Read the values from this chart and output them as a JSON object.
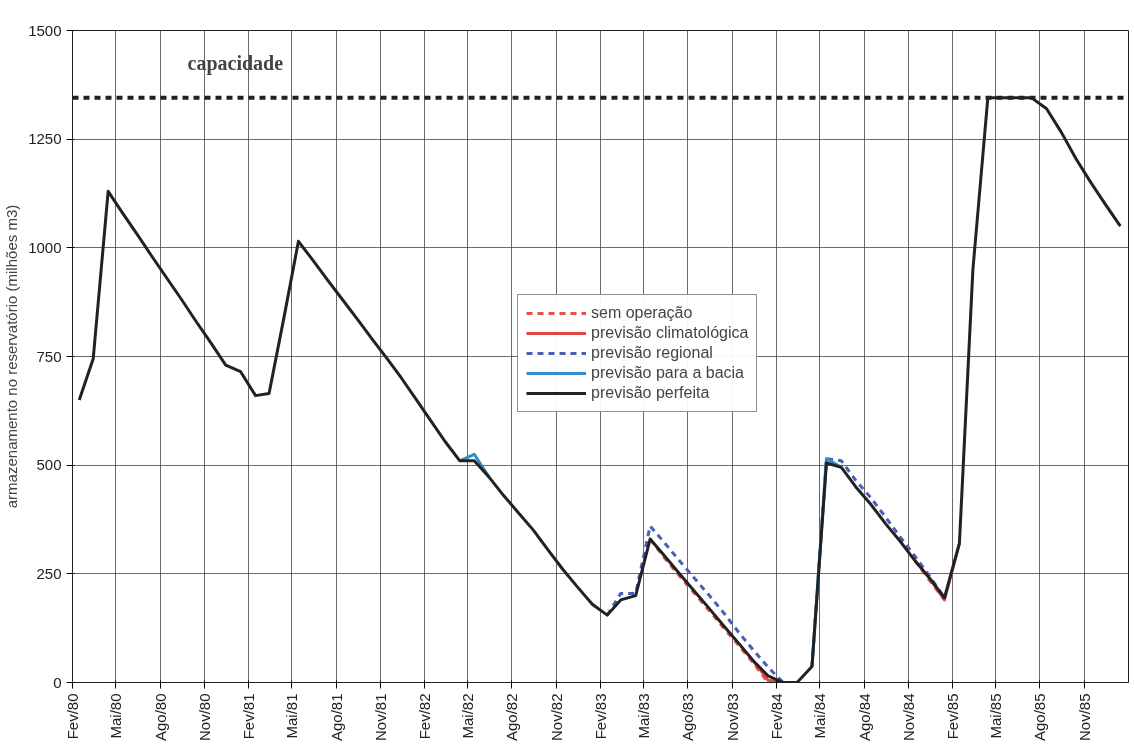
{
  "chart_data": {
    "type": "line",
    "ylabel": "armazenamento no reservatório (milhões m3)",
    "ylim": [
      0,
      1500
    ],
    "yticks": [
      0,
      250,
      500,
      750,
      1000,
      1250,
      1500
    ],
    "xlim": [
      "1980-02-01",
      "1986-02-01"
    ],
    "xticks": [
      {
        "value": "1980-02-01",
        "label": "Fev/80"
      },
      {
        "value": "1980-05-01",
        "label": "Mai/80"
      },
      {
        "value": "1980-08-01",
        "label": "Ago/80"
      },
      {
        "value": "1980-11-01",
        "label": "Nov/80"
      },
      {
        "value": "1981-02-01",
        "label": "Fev/81"
      },
      {
        "value": "1981-05-01",
        "label": "Mai/81"
      },
      {
        "value": "1981-08-01",
        "label": "Ago/81"
      },
      {
        "value": "1981-11-01",
        "label": "Nov/81"
      },
      {
        "value": "1982-02-01",
        "label": "Fev/82"
      },
      {
        "value": "1982-05-01",
        "label": "Mai/82"
      },
      {
        "value": "1982-08-01",
        "label": "Ago/82"
      },
      {
        "value": "1982-11-01",
        "label": "Nov/82"
      },
      {
        "value": "1983-02-01",
        "label": "Fev/83"
      },
      {
        "value": "1983-05-01",
        "label": "Mai/83"
      },
      {
        "value": "1983-08-01",
        "label": "Ago/83"
      },
      {
        "value": "1983-11-01",
        "label": "Nov/83"
      },
      {
        "value": "1984-02-01",
        "label": "Fev/84"
      },
      {
        "value": "1984-05-01",
        "label": "Mai/84"
      },
      {
        "value": "1984-08-01",
        "label": "Ago/84"
      },
      {
        "value": "1984-11-01",
        "label": "Nov/84"
      },
      {
        "value": "1985-02-01",
        "label": "Fev/85"
      },
      {
        "value": "1985-05-01",
        "label": "Mai/85"
      },
      {
        "value": "1985-08-01",
        "label": "Ago/85"
      },
      {
        "value": "1985-11-01",
        "label": "Nov/85"
      }
    ],
    "x": [
      "1980-02-15",
      "1980-03-15",
      "1980-04-15",
      "1980-05-15",
      "1980-06-15",
      "1980-07-15",
      "1980-08-15",
      "1980-09-15",
      "1980-10-15",
      "1980-11-15",
      "1980-12-15",
      "1981-01-15",
      "1981-02-15",
      "1981-03-15",
      "1981-04-15",
      "1981-05-15",
      "1981-06-15",
      "1981-07-15",
      "1981-08-15",
      "1981-09-15",
      "1981-10-15",
      "1981-11-15",
      "1981-12-15",
      "1982-01-15",
      "1982-02-15",
      "1982-03-15",
      "1982-04-15",
      "1982-05-15",
      "1982-06-15",
      "1982-07-15",
      "1982-08-15",
      "1982-09-15",
      "1982-10-15",
      "1982-11-15",
      "1982-12-15",
      "1983-01-15",
      "1983-02-15",
      "1983-03-15",
      "1983-04-15",
      "1983-05-15",
      "1983-06-15",
      "1983-07-15",
      "1983-08-15",
      "1983-09-15",
      "1983-10-15",
      "1983-11-15",
      "1983-12-15",
      "1984-01-15",
      "1984-02-15",
      "1984-03-15",
      "1984-04-15",
      "1984-05-15",
      "1984-06-15",
      "1984-07-15",
      "1984-08-15",
      "1984-09-15",
      "1984-10-15",
      "1984-11-15",
      "1984-12-15",
      "1985-01-15",
      "1985-02-15",
      "1985-03-15",
      "1985-04-15",
      "1985-05-15",
      "1985-06-15",
      "1985-07-15",
      "1985-08-15",
      "1985-09-15",
      "1985-10-15",
      "1985-11-15",
      "1985-12-15",
      "1986-01-15"
    ],
    "series": [
      {
        "name": "sem operação",
        "color": "#e8504a",
        "line_style": "dashed",
        "values": [
          null,
          null,
          null,
          null,
          null,
          null,
          null,
          null,
          null,
          null,
          null,
          null,
          null,
          null,
          null,
          null,
          null,
          null,
          null,
          null,
          null,
          null,
          null,
          null,
          null,
          null,
          null,
          null,
          null,
          null,
          null,
          null,
          null,
          null,
          null,
          null,
          null,
          null,
          null,
          330,
          285,
          245,
          205,
          165,
          125,
          85,
          45,
          0,
          0,
          null,
          null,
          null,
          null,
          null,
          null,
          null,
          null,
          280,
          235,
          190,
          null,
          null,
          null,
          null,
          null,
          null,
          null,
          null,
          null,
          null,
          null,
          null
        ]
      },
      {
        "name": "previsão climatológica",
        "color": "#e04848",
        "line_style": "solid",
        "values": [
          null,
          null,
          null,
          null,
          null,
          null,
          null,
          null,
          null,
          null,
          null,
          null,
          null,
          null,
          null,
          null,
          null,
          null,
          null,
          null,
          null,
          null,
          null,
          null,
          null,
          null,
          null,
          null,
          null,
          null,
          null,
          null,
          null,
          null,
          null,
          null,
          null,
          null,
          null,
          null,
          null,
          null,
          null,
          null,
          null,
          null,
          50,
          5,
          0,
          null,
          null,
          null,
          null,
          null,
          null,
          null,
          null,
          null,
          240,
          190,
          320,
          null,
          null,
          null,
          null,
          null,
          null,
          null,
          null,
          null,
          null,
          null
        ]
      },
      {
        "name": "previsão regional",
        "color": "#4a5fb5",
        "line_style": "dashed",
        "values": [
          null,
          null,
          null,
          null,
          null,
          null,
          null,
          null,
          null,
          null,
          null,
          null,
          null,
          null,
          null,
          null,
          null,
          null,
          null,
          null,
          null,
          null,
          null,
          null,
          null,
          null,
          null,
          null,
          null,
          null,
          null,
          null,
          null,
          null,
          null,
          null,
          155,
          205,
          205,
          360,
          320,
          280,
          240,
          200,
          160,
          115,
          75,
          35,
          0,
          null,
          37,
          515,
          510,
          465,
          425,
          380,
          335,
          290,
          245,
          195,
          null,
          null,
          null,
          null,
          null,
          null,
          null,
          null,
          null,
          null,
          null,
          null
        ]
      },
      {
        "name": "previsão para a bacia",
        "color": "#2f8fc8",
        "line_style": "solid",
        "values": [
          null,
          null,
          null,
          null,
          null,
          null,
          null,
          null,
          null,
          null,
          null,
          null,
          null,
          null,
          null,
          null,
          null,
          null,
          null,
          null,
          null,
          null,
          null,
          null,
          null,
          null,
          510,
          525,
          472,
          null,
          null,
          null,
          null,
          null,
          null,
          null,
          null,
          null,
          null,
          null,
          null,
          null,
          null,
          null,
          null,
          null,
          null,
          null,
          null,
          null,
          37,
          515,
          495,
          null,
          null,
          null,
          null,
          null,
          null,
          null,
          null,
          null,
          null,
          null,
          null,
          null,
          null,
          null,
          null,
          null,
          null,
          null
        ]
      },
      {
        "name": "previsão perfeita",
        "color": "#222222",
        "line_style": "solid",
        "values": [
          650,
          745,
          1130,
          1080,
          1030,
          980,
          930,
          880,
          830,
          780,
          730,
          715,
          660,
          665,
          840,
          1015,
          970,
          925,
          880,
          835,
          790,
          745,
          700,
          650,
          600,
          555,
          510,
          510,
          472,
          430,
          390,
          350,
          305,
          260,
          220,
          180,
          155,
          190,
          200,
          330,
          290,
          250,
          210,
          170,
          130,
          90,
          50,
          15,
          0,
          0,
          37,
          505,
          495,
          450,
          410,
          365,
          325,
          280,
          240,
          195,
          320,
          950,
          1345,
          1345,
          1345,
          1345,
          1320,
          1265,
          1205,
          1150,
          1100,
          1050
        ]
      }
    ],
    "ref_lines": [
      {
        "axis": "y",
        "value": 1345,
        "label": "capacidade",
        "color": "#222222",
        "line_style": "dashed"
      }
    ],
    "grid": true,
    "legend": "center",
    "marker": "none"
  }
}
